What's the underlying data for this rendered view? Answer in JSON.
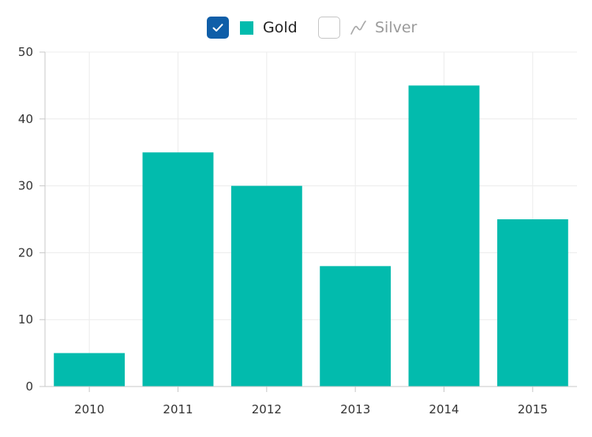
{
  "legend": {
    "items": [
      {
        "label": "Gold",
        "checked": true,
        "color": "#02bbad",
        "icon": "square-swatch-icon"
      },
      {
        "label": "Silver",
        "checked": false,
        "color": "#a8a8a8",
        "icon": "line-series-icon"
      }
    ]
  },
  "colors": {
    "gold": "#02bbad",
    "checkbox_checked": "#0f5ea8",
    "grid": "#ececec",
    "axis": "#c8c8c8"
  },
  "chart_data": {
    "type": "bar",
    "categories": [
      "2010",
      "2011",
      "2012",
      "2013",
      "2014",
      "2015"
    ],
    "series": [
      {
        "name": "Gold",
        "values": [
          5,
          35,
          30,
          18,
          45,
          25
        ]
      }
    ],
    "title": "",
    "xlabel": "",
    "ylabel": "",
    "ylim": [
      0,
      50
    ],
    "yticks": [
      0,
      10,
      20,
      30,
      40,
      50
    ],
    "grid": true,
    "legend_position": "top-center"
  }
}
